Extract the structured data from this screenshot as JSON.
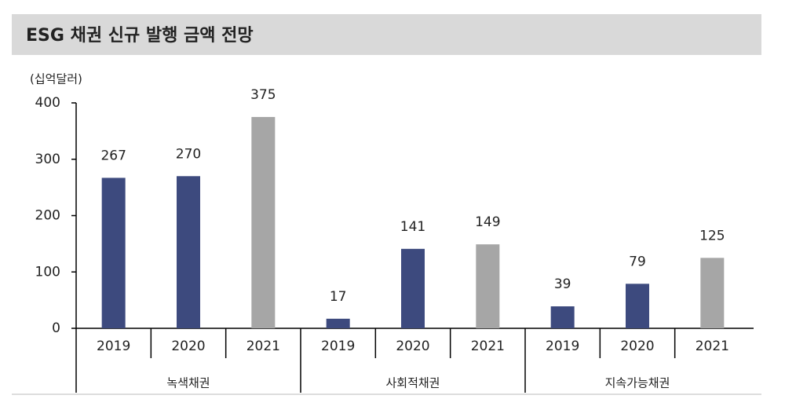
{
  "chart_data": {
    "type": "bar",
    "title": "ESG 채권 신규 발행 금액 전망",
    "unit_label": "(십억달러)",
    "year_colors": [
      "#3d4a7e",
      "#3d4a7e",
      "#a6a6a6"
    ],
    "groups": [
      {
        "name": "녹색채권",
        "categories": [
          "2019",
          "2020",
          "2021"
        ],
        "values": [
          267,
          270,
          375
        ]
      },
      {
        "name": "사회적채권",
        "categories": [
          "2019",
          "2020",
          "2021"
        ],
        "values": [
          17,
          141,
          149
        ]
      },
      {
        "name": "지속가능채권",
        "categories": [
          "2019",
          "2020",
          "2021"
        ],
        "values": [
          39,
          79,
          125
        ]
      }
    ],
    "ylim": [
      0,
      400
    ],
    "yticks": [
      0,
      100,
      200,
      300,
      400
    ],
    "grid": false
  }
}
